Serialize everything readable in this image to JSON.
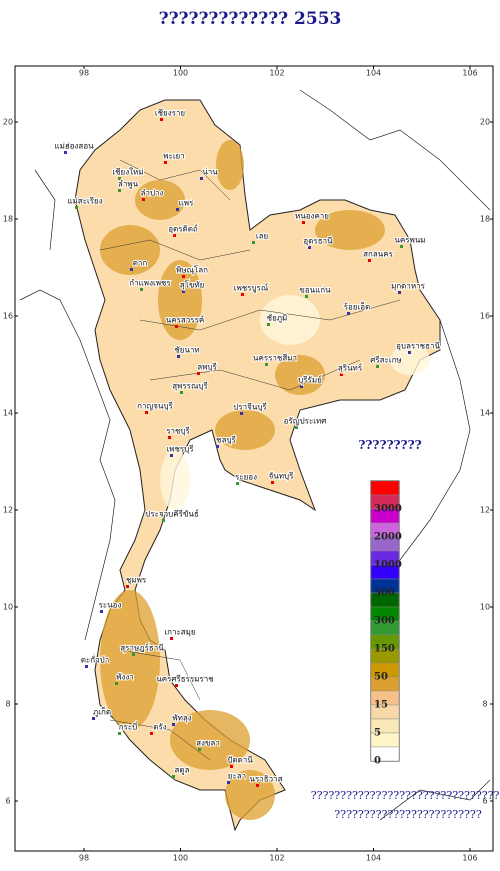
{
  "title": "????????????? 2553",
  "axes": {
    "lon": [
      98,
      100,
      102,
      104,
      106
    ],
    "lat": [
      20,
      18,
      16,
      14,
      12,
      10,
      8,
      6
    ]
  },
  "legend": {
    "title": "?????????",
    "colors": [
      "#ff0000",
      "#d42a5a",
      "#cc00cc",
      "#cc66dd",
      "#9966cc",
      "#6a2ae0",
      "#3300ff",
      "#003399",
      "#006600",
      "#008800",
      "#339933",
      "#669900",
      "#999900",
      "#cc9900",
      "#dda030",
      "#f5c08a",
      "#f8d8a8",
      "#fbe8b8",
      "#fff4c8",
      "#ffffff"
    ],
    "levels": [
      "3000",
      "2000",
      "1000",
      "500",
      "300",
      "150",
      "50",
      "15",
      "5",
      "0"
    ]
  },
  "map": {
    "places": [
      "เชียงราย",
      "แม่ฮ่องสอน",
      "เชียงใหม่",
      "พะเยา",
      "น่าน",
      "ลำพูน",
      "ลำปาง",
      "แพร่",
      "แม่สะเรียง",
      "อุตรดิตถ์",
      "ตาก",
      "กำแพงเพชร",
      "พิษณุโลก",
      "สุโขทัย",
      "เลย",
      "หนองคาย",
      "อุดรธานี",
      "นครพนม",
      "สกลนคร",
      "มุกดาหาร",
      "ขอนแก่น",
      "เพชรบูรณ์",
      "ร้อยเอ็ด",
      "ชัยภูมิ",
      "นครสวรรค์",
      "อุบลราชธานี",
      "ศรีสะเกษ",
      "สุรินทร์",
      "บุรีรัมย์",
      "นครราชสีมา",
      "ลพบุรี",
      "ชัยนาท",
      "สุพรรณบุรี",
      "กาญจนบุรี",
      "ปราจีนบุรี",
      "อรัญประเทศ",
      "ราชบุรี",
      "ชลบุรี",
      "ระยอง",
      "จันทบุรี",
      "เพชรบุรี",
      "ประจวบคีรีขันธ์",
      "ชุมพร",
      "ระนอง",
      "สุราษฎร์ธานี",
      "เกาะสมุย",
      "ตะกั่วป่า",
      "พังงา",
      "นครศรีธรรมราช",
      "ภูเก็ต",
      "กระบี่",
      "ตรัง",
      "พัทลุง",
      "สงขลา",
      "ปัตตานี",
      "ยะลา",
      "สตูล",
      "นราธิวาส"
    ]
  },
  "notes": [
    "?????????????????????????????????",
    "?????????????????????????"
  ]
}
